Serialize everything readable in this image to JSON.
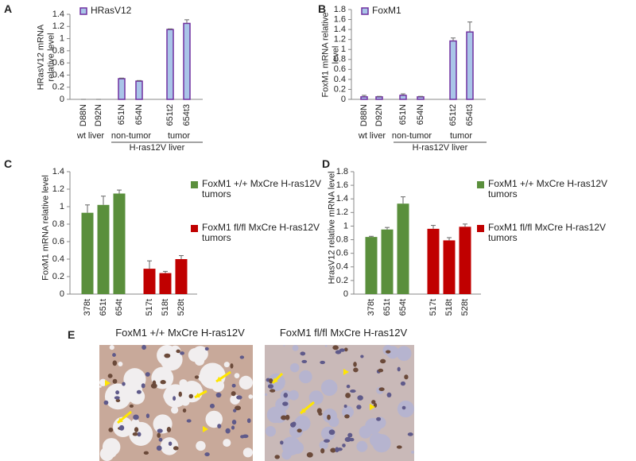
{
  "chart_data": [
    {
      "type": "bar",
      "panel": "A",
      "y_label": "HRasV12 mRNA relative level",
      "categories": [
        "D88N",
        "D92N",
        "651N",
        "654N",
        "651t2",
        "654t3"
      ],
      "group_labels": [
        "wt liver",
        "non-tumor",
        "tumor"
      ],
      "super_label": "H-ras12V liver",
      "series": [
        {
          "name": "HRasV12",
          "color": "#a9c5e8",
          "edge_color": "#7030a0",
          "values": [
            0,
            0,
            0.34,
            0.3,
            1.15,
            1.25
          ],
          "errors": [
            0,
            0,
            0.01,
            0.01,
            0.01,
            0.06
          ]
        }
      ],
      "ylim": [
        0,
        1.4
      ],
      "yticks": [
        0,
        0.2,
        0.4,
        0.6,
        0.8,
        1,
        1.2,
        1.4
      ],
      "legend": "upper left"
    },
    {
      "type": "bar",
      "panel": "B",
      "y_label": "FoxM1 mRNA relative level",
      "categories": [
        "D88N",
        "D92N",
        "651N",
        "654N",
        "651t2",
        "654t3"
      ],
      "group_labels": [
        "wt liver",
        "non-tumor",
        "tumor"
      ],
      "super_label": "H-ras12V liver",
      "series": [
        {
          "name": "FoxM1",
          "color": "#a9c5e8",
          "edge_color": "#7030a0",
          "values": [
            0.05,
            0.05,
            0.08,
            0.05,
            1.17,
            1.35
          ],
          "errors": [
            0.03,
            0.01,
            0.03,
            0.01,
            0.06,
            0.2
          ]
        }
      ],
      "ylim": [
        0,
        1.8
      ],
      "yticks": [
        0,
        0.2,
        0.4,
        0.6,
        0.8,
        1,
        1.2,
        1.4,
        1.6,
        1.8
      ],
      "legend": "upper left"
    },
    {
      "type": "bar",
      "panel": "C",
      "y_label": "FoxM1 mRNA relative level",
      "categories": [
        "378t",
        "651t",
        "654t",
        "517t",
        "518t",
        "528t"
      ],
      "series": [
        {
          "name": "FoxM1 +/+ MxCre H-ras12V tumors",
          "color": "#5a8f3c",
          "values": [
            0.93,
            1.02,
            1.15,
            null,
            null,
            null
          ],
          "errors": [
            0.09,
            0.1,
            0.04,
            null,
            null,
            null
          ]
        },
        {
          "name": "FoxM1 fl/fl MxCre H-ras12V tumors",
          "color": "#c00000",
          "values": [
            null,
            null,
            null,
            0.29,
            0.24,
            0.4
          ],
          "errors": [
            null,
            null,
            null,
            0.09,
            0.02,
            0.04
          ]
        }
      ],
      "ylim": [
        0,
        1.4
      ],
      "yticks": [
        0,
        0.2,
        0.4,
        0.6,
        0.8,
        1,
        1.2,
        1.4
      ],
      "legend": "right"
    },
    {
      "type": "bar",
      "panel": "D",
      "y_label": "HrasV12 relative mRNA level",
      "categories": [
        "378t",
        "651t",
        "654t",
        "517t",
        "518t",
        "528t"
      ],
      "series": [
        {
          "name": "FoxM1 +/+ MxCre H-ras12V tumors",
          "color": "#5a8f3c",
          "values": [
            0.84,
            0.95,
            1.33,
            null,
            null,
            null
          ],
          "errors": [
            0.01,
            0.03,
            0.1,
            null,
            null,
            null
          ]
        },
        {
          "name": "FoxM1 fl/fl MxCre H-ras12V tumors",
          "color": "#c00000",
          "values": [
            null,
            null,
            null,
            0.96,
            0.79,
            0.99
          ],
          "errors": [
            null,
            null,
            null,
            0.05,
            0.04,
            0.04
          ]
        }
      ],
      "ylim": [
        0,
        1.8
      ],
      "yticks": [
        0,
        0.2,
        0.4,
        0.6,
        0.8,
        1,
        1.2,
        1.4,
        1.6,
        1.8
      ],
      "legend": "right"
    }
  ],
  "panel_e": {
    "panel": "E",
    "titles": [
      "FoxM1 +/+ MxCre H-ras12V",
      "FoxM1 fl/fl MxCre H-ras12V"
    ]
  }
}
